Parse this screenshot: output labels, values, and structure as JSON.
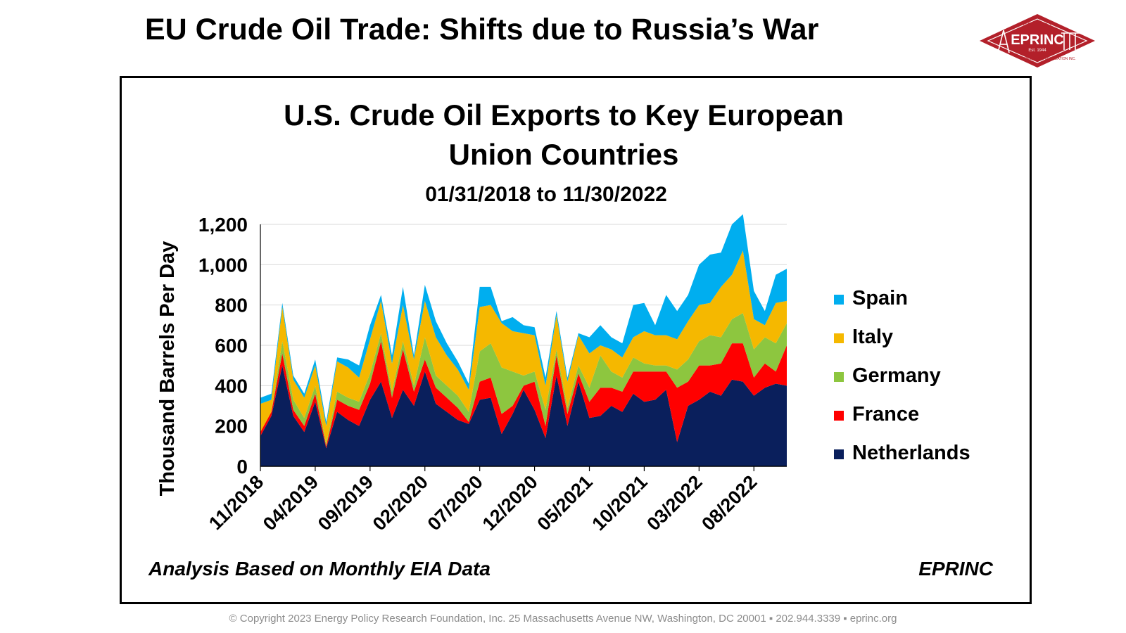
{
  "header": {
    "title": "EU Crude Oil Trade: Shifts due to Russia’s War"
  },
  "logo": {
    "name": "EPRINC",
    "est": "Est. 1944",
    "ring_top": "ENERGY POLICY",
    "ring_bottom": "RESEARCH FOUNDATION INC.",
    "colors": {
      "red": "#b3202a",
      "white": "#ffffff"
    }
  },
  "chart_data": {
    "type": "area",
    "stacked": true,
    "title_lines": [
      "U.S. Crude Oil Exports to Key European",
      "Union Countries"
    ],
    "subtitle": "01/31/2018 to 11/30/2022",
    "ylabel": "Thousand Barrels Per Day",
    "xlabel": "",
    "ylim": [
      0,
      1200
    ],
    "yticks": [
      0,
      200,
      400,
      600,
      800,
      1000,
      1200
    ],
    "ytick_labels": [
      "0",
      "200",
      "400",
      "600",
      "800",
      "1,000",
      "1,200"
    ],
    "x_tick_labels": [
      "11/2018",
      "04/2019",
      "09/2019",
      "02/2020",
      "07/2020",
      "12/2020",
      "05/2021",
      "10/2021",
      "03/2022",
      "08/2022"
    ],
    "x_tick_index": [
      0,
      5,
      10,
      15,
      20,
      25,
      30,
      35,
      40,
      45
    ],
    "x": [
      "11/2018",
      "12/2018",
      "01/2019",
      "02/2019",
      "03/2019",
      "04/2019",
      "05/2019",
      "06/2019",
      "07/2019",
      "08/2019",
      "09/2019",
      "10/2019",
      "11/2019",
      "12/2019",
      "01/2020",
      "02/2020",
      "03/2020",
      "04/2020",
      "05/2020",
      "06/2020",
      "07/2020",
      "08/2020",
      "09/2020",
      "10/2020",
      "11/2020",
      "12/2020",
      "01/2021",
      "02/2021",
      "03/2021",
      "04/2021",
      "05/2021",
      "06/2021",
      "07/2021",
      "08/2021",
      "09/2021",
      "10/2021",
      "11/2021",
      "12/2021",
      "01/2022",
      "02/2022",
      "03/2022",
      "04/2022",
      "05/2022",
      "06/2022",
      "07/2022",
      "08/2022",
      "09/2022",
      "10/2022",
      "11/2022"
    ],
    "grid": "horizontal",
    "legend_position": "right",
    "series": [
      {
        "name": "Netherlands",
        "color": "#0a1f5c",
        "values": [
          150,
          250,
          500,
          250,
          170,
          320,
          90,
          270,
          230,
          200,
          330,
          420,
          240,
          380,
          300,
          470,
          310,
          270,
          230,
          210,
          330,
          340,
          160,
          260,
          380,
          280,
          140,
          450,
          200,
          420,
          240,
          250,
          300,
          270,
          360,
          320,
          330,
          380,
          120,
          300,
          330,
          370,
          350,
          430,
          420,
          350,
          390,
          410,
          400
        ]
      },
      {
        "name": "France",
        "color": "#ff0000",
        "values": [
          20,
          20,
          60,
          30,
          30,
          40,
          10,
          60,
          70,
          80,
          80,
          200,
          100,
          200,
          70,
          60,
          80,
          70,
          60,
          10,
          90,
          100,
          100,
          40,
          20,
          140,
          60,
          100,
          60,
          40,
          80,
          140,
          90,
          100,
          110,
          150,
          140,
          90,
          270,
          120,
          170,
          130,
          160,
          180,
          190,
          90,
          120,
          60,
          200
        ]
      },
      {
        "name": "Germany",
        "color": "#8dc63f",
        "values": [
          0,
          0,
          60,
          50,
          40,
          40,
          10,
          40,
          40,
          40,
          50,
          40,
          30,
          40,
          30,
          110,
          60,
          60,
          60,
          50,
          150,
          170,
          230,
          170,
          50,
          50,
          80,
          30,
          30,
          40,
          70,
          160,
          80,
          70,
          70,
          40,
          30,
          30,
          90,
          110,
          120,
          150,
          130,
          120,
          150,
          140,
          130,
          140,
          110
        ]
      },
      {
        "name": "Italy",
        "color": "#f5b800",
        "values": [
          140,
          60,
          170,
          100,
          100,
          100,
          90,
          150,
          150,
          120,
          170,
          160,
          140,
          180,
          130,
          180,
          190,
          150,
          130,
          110,
          220,
          190,
          220,
          200,
          210,
          180,
          120,
          170,
          130,
          150,
          170,
          50,
          110,
          100,
          100,
          160,
          150,
          150,
          150,
          190,
          180,
          160,
          250,
          220,
          310,
          150,
          60,
          200,
          110
        ]
      },
      {
        "name": "Spain",
        "color": "#00aeef",
        "values": [
          30,
          30,
          20,
          20,
          20,
          30,
          20,
          20,
          40,
          60,
          70,
          30,
          40,
          90,
          20,
          80,
          80,
          60,
          40,
          30,
          100,
          90,
          10,
          70,
          40,
          40,
          40,
          20,
          20,
          10,
          80,
          100,
          60,
          70,
          160,
          140,
          50,
          200,
          140,
          130,
          200,
          240,
          170,
          250,
          180,
          140,
          70,
          140,
          160
        ]
      }
    ]
  },
  "annotations": {
    "analysis_note": "Analysis Based on Monthly EIA Data",
    "brand": "EPRINC"
  },
  "footer": {
    "copyright": "© Copyright 2023 Energy Policy Research Foundation, Inc. 25 Massachusetts Avenue NW, Washington, DC 20001 ▪ 202.944.3339 ▪ eprinc.org"
  }
}
